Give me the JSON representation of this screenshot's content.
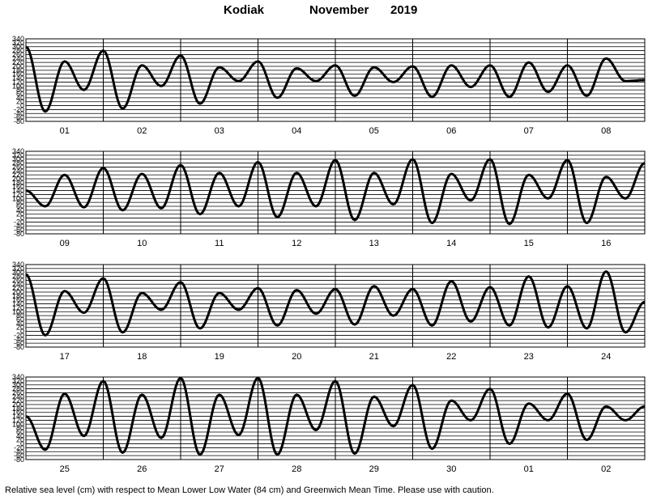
{
  "title": {
    "station": "Kodiak",
    "month": "November",
    "year": "2019"
  },
  "footer": "Relative sea level (cm) with respect to Mean Lower Low Water (84 cm) and Greenwich Mean Time. Please use with caution.",
  "chart_data": [
    {
      "type": "line",
      "title": "",
      "xlabel": "",
      "ylabel": "",
      "ylim": [
        -80,
        340
      ],
      "yticks": [
        340,
        320,
        300,
        280,
        260,
        240,
        220,
        200,
        180,
        160,
        140,
        120,
        100,
        80,
        60,
        40,
        20,
        0,
        -20,
        -40,
        -60,
        -80
      ],
      "grid": true,
      "days": [
        "01",
        "02",
        "03",
        "04",
        "05",
        "06",
        "07",
        "08"
      ],
      "x": [
        0,
        1,
        2,
        3,
        4,
        5,
        6,
        7,
        8,
        9,
        10,
        11,
        12,
        13,
        14,
        15,
        16,
        17,
        18,
        19,
        20,
        21,
        22,
        23,
        24,
        25,
        26,
        27,
        28,
        29,
        30,
        31,
        32
      ],
      "series": [
        {
          "values": [
            300,
            -30,
            225,
            80,
            280,
            -15,
            205,
            100,
            255,
            10,
            195,
            125,
            225,
            40,
            190,
            125,
            205,
            50,
            195,
            120,
            200,
            45,
            205,
            95,
            205,
            45,
            220,
            70,
            205,
            50,
            240,
            125,
            130
          ]
        }
      ]
    },
    {
      "type": "line",
      "title": "",
      "xlabel": "",
      "ylabel": "",
      "ylim": [
        -80,
        340
      ],
      "yticks": [
        340,
        320,
        300,
        280,
        260,
        240,
        220,
        200,
        180,
        160,
        140,
        120,
        100,
        80,
        60,
        40,
        20,
        0,
        -20,
        -40,
        -60,
        -80
      ],
      "grid": true,
      "days": [
        "09",
        "10",
        "11",
        "12",
        "13",
        "14",
        "15",
        "16"
      ],
      "x": [
        0,
        1,
        2,
        3,
        4,
        5,
        6,
        7,
        8,
        9,
        10,
        11,
        12,
        13,
        14,
        15,
        16,
        17,
        18,
        19,
        20,
        21,
        22,
        23,
        24,
        25,
        26,
        27,
        28,
        29,
        30,
        31,
        32
      ],
      "series": [
        {
          "values": [
            140,
            60,
            220,
            55,
            255,
            40,
            225,
            50,
            270,
            20,
            230,
            60,
            285,
            5,
            230,
            60,
            295,
            -10,
            230,
            70,
            300,
            -25,
            225,
            90,
            300,
            -30,
            220,
            100,
            295,
            -25,
            210,
            100,
            280
          ]
        }
      ]
    },
    {
      "type": "line",
      "title": "",
      "xlabel": "",
      "ylabel": "",
      "ylim": [
        -80,
        340
      ],
      "yticks": [
        340,
        320,
        300,
        280,
        260,
        240,
        220,
        200,
        180,
        160,
        140,
        120,
        100,
        80,
        60,
        40,
        20,
        0,
        -20,
        -40,
        -60,
        -80
      ],
      "grid": true,
      "days": [
        "17",
        "18",
        "19",
        "20",
        "21",
        "22",
        "23",
        "24"
      ],
      "x": [
        0,
        1,
        2,
        3,
        4,
        5,
        6,
        7,
        8,
        9,
        10,
        11,
        12,
        13,
        14,
        15,
        16,
        17,
        18,
        19,
        20,
        21,
        22,
        23,
        24,
        25,
        26,
        27,
        28,
        29,
        30,
        31,
        32
      ],
      "series": [
        {
          "values": [
            290,
            -20,
            205,
            95,
            270,
            -5,
            195,
            110,
            250,
            15,
            195,
            110,
            220,
            30,
            210,
            90,
            215,
            35,
            230,
            80,
            215,
            30,
            255,
            50,
            225,
            30,
            280,
            20,
            230,
            15,
            305,
            -5,
            150
          ]
        }
      ]
    },
    {
      "type": "line",
      "title": "",
      "xlabel": "",
      "ylabel": "",
      "ylim": [
        -80,
        340
      ],
      "yticks": [
        340,
        320,
        300,
        280,
        260,
        240,
        220,
        200,
        180,
        160,
        140,
        120,
        100,
        80,
        60,
        40,
        20,
        0,
        -20,
        -40,
        -60,
        -80
      ],
      "grid": true,
      "days": [
        "25",
        "26",
        "27",
        "28",
        "29",
        "30",
        "01",
        "02"
      ],
      "x": [
        0,
        1,
        2,
        3,
        4,
        5,
        6,
        7,
        8,
        9,
        10,
        11,
        12,
        13,
        14,
        15,
        16,
        17,
        18,
        19,
        20,
        21,
        22,
        23,
        24,
        25,
        26,
        27,
        28,
        29,
        30,
        31,
        32
      ],
      "series": [
        {
          "values": [
            140,
            -30,
            255,
            40,
            320,
            -45,
            250,
            30,
            335,
            -55,
            250,
            45,
            335,
            -55,
            250,
            70,
            320,
            -50,
            240,
            90,
            300,
            -25,
            220,
            120,
            280,
            0,
            205,
            120,
            255,
            20,
            190,
            120,
            190
          ]
        }
      ]
    }
  ]
}
